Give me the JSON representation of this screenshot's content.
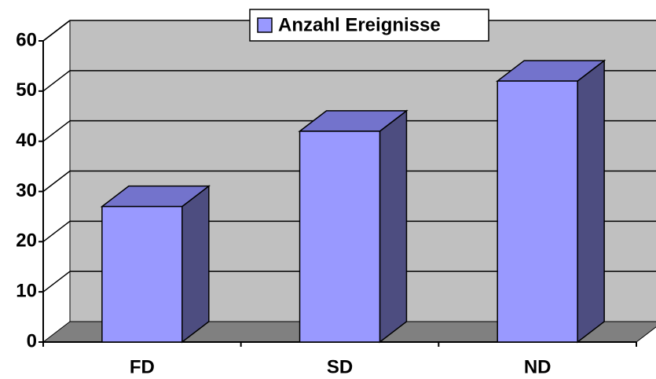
{
  "chart_data": {
    "type": "bar3d",
    "categories": [
      "FD",
      "SD",
      "ND"
    ],
    "series": [
      {
        "name": "Anzahl Ereignisse",
        "color": "#9999ff",
        "values": [
          27,
          42,
          52
        ]
      }
    ],
    "ylim": [
      0,
      60
    ],
    "yticks": [
      0,
      10,
      20,
      30,
      40,
      50,
      60
    ],
    "grid": true,
    "legend": "top"
  }
}
